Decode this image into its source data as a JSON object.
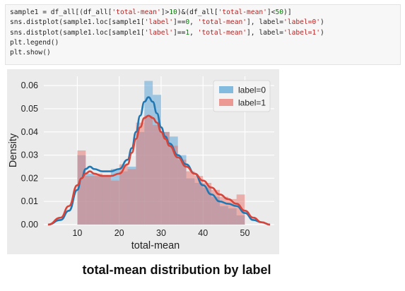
{
  "code_cell": {
    "lines": [
      [
        {
          "t": "sample1 = df_all[(df_all[",
          "c": ""
        },
        {
          "t": "'total-mean'",
          "c": "str"
        },
        {
          "t": "]>",
          "c": ""
        },
        {
          "t": "10",
          "c": "num"
        },
        {
          "t": ")&(df_all[",
          "c": ""
        },
        {
          "t": "'total-mean'",
          "c": "str"
        },
        {
          "t": "]<",
          "c": ""
        },
        {
          "t": "50",
          "c": "num"
        },
        {
          "t": ")]",
          "c": ""
        }
      ],
      [
        {
          "t": "sns.distplot(sample1.loc[sample1[",
          "c": ""
        },
        {
          "t": "'label'",
          "c": "str"
        },
        {
          "t": "]==",
          "c": ""
        },
        {
          "t": "0",
          "c": "num"
        },
        {
          "t": ", ",
          "c": ""
        },
        {
          "t": "'total-mean'",
          "c": "str"
        },
        {
          "t": "], label=",
          "c": ""
        },
        {
          "t": "'label=0'",
          "c": "str"
        },
        {
          "t": ")",
          "c": ""
        }
      ],
      [
        {
          "t": "sns.distplot(sample1.loc[sample1[",
          "c": ""
        },
        {
          "t": "'label'",
          "c": "str"
        },
        {
          "t": "]==",
          "c": ""
        },
        {
          "t": "1",
          "c": "num"
        },
        {
          "t": ", ",
          "c": ""
        },
        {
          "t": "'total-mean'",
          "c": "str"
        },
        {
          "t": "], label=",
          "c": ""
        },
        {
          "t": "'label=1'",
          "c": "str"
        },
        {
          "t": ")",
          "c": ""
        }
      ],
      [
        {
          "t": "plt.legend()",
          "c": ""
        }
      ],
      [
        {
          "t": "plt.show()",
          "c": ""
        }
      ]
    ]
  },
  "caption": "total-mean distribution by label",
  "colors": {
    "series0": "#5ea8d8",
    "series0_line": "#1f77b4",
    "series1": "#e8726a",
    "series1_line": "#d6443a",
    "panel_bg": "#ebebeb",
    "grid": "#ffffff"
  },
  "chart_data": {
    "type": "area",
    "xlabel": "total-mean",
    "ylabel": "Density",
    "xlim": [
      2,
      57
    ],
    "ylim": [
      0,
      0.064
    ],
    "xticks": [
      10,
      20,
      30,
      40,
      50
    ],
    "yticks": [
      0.0,
      0.01,
      0.02,
      0.03,
      0.04,
      0.05,
      0.06
    ],
    "ytick_labels": [
      "0.00",
      "0.01",
      "0.02",
      "0.03",
      "0.04",
      "0.05",
      "0.06"
    ],
    "legend_position": "top-right",
    "grid": true,
    "bin_edges": [
      10,
      12,
      14,
      16,
      18,
      20,
      22,
      24,
      26,
      28,
      30,
      32,
      34,
      36,
      38,
      40,
      42,
      44,
      46,
      48,
      50
    ],
    "series": [
      {
        "name": "label=0",
        "hist": [
          0.03,
          0.022,
          0.021,
          0.021,
          0.024,
          0.023,
          0.025,
          0.04,
          0.062,
          0.056,
          0.04,
          0.038,
          0.03,
          0.02,
          0.018,
          0.016,
          0.012,
          0.008,
          0.007,
          0.004
        ],
        "kde_x": [
          3,
          6,
          8,
          10,
          11,
          12,
          13,
          14,
          16,
          18,
          20,
          22,
          23,
          24,
          25,
          26,
          27,
          28,
          29,
          30,
          31,
          32,
          34,
          36,
          38,
          40,
          42,
          44,
          46,
          48,
          50,
          52,
          54,
          56
        ],
        "kde_y": [
          0.0,
          0.002,
          0.006,
          0.015,
          0.02,
          0.024,
          0.025,
          0.024,
          0.023,
          0.023,
          0.024,
          0.028,
          0.033,
          0.04,
          0.047,
          0.053,
          0.055,
          0.053,
          0.048,
          0.042,
          0.038,
          0.035,
          0.03,
          0.026,
          0.022,
          0.017,
          0.013,
          0.01,
          0.009,
          0.008,
          0.005,
          0.002,
          0.001,
          0.0
        ]
      },
      {
        "name": "label=1",
        "hist": [
          0.032,
          0.021,
          0.022,
          0.021,
          0.019,
          0.026,
          0.024,
          0.044,
          0.047,
          0.043,
          0.04,
          0.034,
          0.028,
          0.023,
          0.021,
          0.018,
          0.015,
          0.012,
          0.011,
          0.013
        ],
        "kde_x": [
          3,
          6,
          8,
          10,
          11,
          12,
          13,
          14,
          16,
          18,
          20,
          22,
          23,
          24,
          25,
          26,
          27,
          28,
          29,
          30,
          31,
          32,
          34,
          36,
          38,
          40,
          42,
          44,
          46,
          48,
          50,
          52,
          54,
          56
        ],
        "kde_y": [
          0.0,
          0.003,
          0.008,
          0.017,
          0.02,
          0.022,
          0.023,
          0.022,
          0.021,
          0.021,
          0.022,
          0.026,
          0.031,
          0.037,
          0.042,
          0.046,
          0.047,
          0.046,
          0.044,
          0.04,
          0.037,
          0.034,
          0.029,
          0.025,
          0.022,
          0.019,
          0.016,
          0.013,
          0.011,
          0.009,
          0.006,
          0.003,
          0.001,
          0.0
        ]
      }
    ]
  }
}
